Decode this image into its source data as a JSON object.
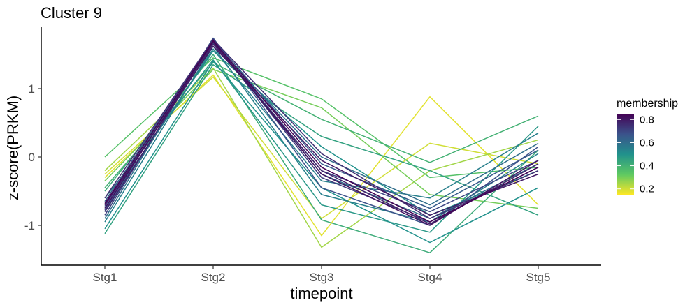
{
  "chart_data": {
    "type": "line",
    "title": "Cluster 9",
    "xlabel": "timepoint",
    "ylabel": "z-score(PRKM)",
    "categories": [
      "Stg1",
      "Stg2",
      "Stg3",
      "Stg4",
      "Stg5"
    ],
    "ylim": [
      -1.55,
      1.9
    ],
    "yticks": [
      -1,
      0,
      1
    ],
    "grid": false,
    "colormap": "viridis (reversed: high membership = dark purple)",
    "legend": {
      "title": "membership",
      "position": "right",
      "range": [
        0.15,
        0.85
      ],
      "ticks": [
        0.2,
        0.4,
        0.6,
        0.8
      ]
    },
    "series": [
      {
        "membership": 0.18,
        "values": [
          -0.3,
          1.2,
          -1.15,
          0.88,
          -0.7
        ]
      },
      {
        "membership": 0.2,
        "values": [
          -0.25,
          1.17,
          -0.9,
          0.2,
          -0.1
        ]
      },
      {
        "membership": 0.25,
        "values": [
          -0.2,
          1.3,
          -1.32,
          -0.2,
          0.25
        ]
      },
      {
        "membership": 0.3,
        "values": [
          -0.35,
          1.28,
          0.72,
          -0.55,
          -0.75
        ]
      },
      {
        "membership": 0.35,
        "values": [
          0.0,
          1.45,
          0.85,
          -0.3,
          -0.15
        ]
      },
      {
        "membership": 0.4,
        "values": [
          -0.45,
          1.38,
          0.55,
          -0.08,
          0.6
        ]
      },
      {
        "membership": 0.42,
        "values": [
          -0.5,
          1.5,
          -0.92,
          -1.4,
          0.1
        ]
      },
      {
        "membership": 0.45,
        "values": [
          -1.12,
          1.35,
          0.3,
          -0.2,
          -0.85
        ]
      },
      {
        "membership": 0.48,
        "values": [
          -0.6,
          1.42,
          -0.7,
          -1.1,
          0.45
        ]
      },
      {
        "membership": 0.5,
        "values": [
          -0.75,
          1.55,
          0.15,
          -0.85,
          -0.2
        ]
      },
      {
        "membership": 0.5,
        "values": [
          -1.05,
          1.4,
          -0.45,
          -1.25,
          -0.45
        ]
      },
      {
        "membership": 0.55,
        "values": [
          -0.8,
          1.58,
          -0.35,
          -0.6,
          0.35
        ]
      },
      {
        "membership": 0.55,
        "values": [
          -0.95,
          1.62,
          -0.55,
          -0.95,
          0.05
        ]
      },
      {
        "membership": 0.6,
        "values": [
          -0.7,
          1.66,
          0.0,
          -0.7,
          0.2
        ]
      },
      {
        "membership": 0.6,
        "values": [
          -0.9,
          1.7,
          -0.25,
          -0.9,
          -0.1
        ]
      },
      {
        "membership": 0.65,
        "values": [
          -0.65,
          1.72,
          -0.1,
          -0.75,
          0.1
        ]
      },
      {
        "membership": 0.68,
        "values": [
          -0.78,
          1.74,
          -0.45,
          -1.0,
          0.15
        ]
      },
      {
        "membership": 0.7,
        "values": [
          -0.72,
          1.68,
          -0.2,
          -0.8,
          -0.05
        ]
      },
      {
        "membership": 0.72,
        "values": [
          -0.85,
          1.7,
          -0.3,
          -0.95,
          -0.15
        ]
      },
      {
        "membership": 0.75,
        "values": [
          -0.6,
          1.72,
          0.05,
          -0.9,
          -0.2
        ]
      },
      {
        "membership": 0.78,
        "values": [
          -0.8,
          1.65,
          -0.2,
          -0.98,
          -0.1
        ]
      },
      {
        "membership": 0.8,
        "values": [
          -0.7,
          1.62,
          -0.05,
          -0.85,
          -0.25
        ]
      },
      {
        "membership": 0.82,
        "values": [
          -0.75,
          1.68,
          -0.25,
          -1.0,
          -0.05
        ]
      },
      {
        "membership": 0.85,
        "values": [
          -0.68,
          1.7,
          -0.15,
          -0.95,
          -0.15
        ]
      }
    ]
  }
}
